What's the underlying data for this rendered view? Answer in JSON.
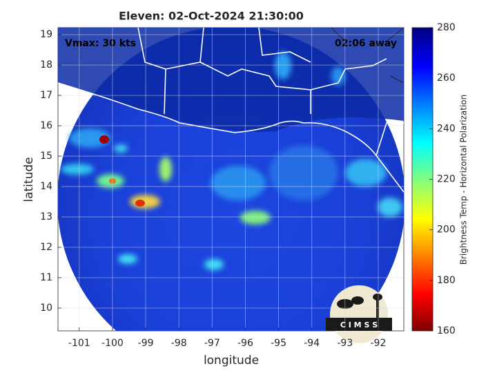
{
  "chart_data": {
    "type": "image",
    "title": "Eleven: 02-Oct-2024 21:30:00",
    "annotations": [
      "Vmax: 30 kts",
      "02:06 away"
    ],
    "xlabel": "longitude",
    "ylabel": "latitude",
    "xlim": [
      -101.64,
      -91.23
    ],
    "xticks": [
      -101,
      -100,
      -99,
      -98,
      -97,
      -96,
      -95,
      -94,
      -93,
      -92
    ],
    "ylim": [
      9.25,
      19.23
    ],
    "yticks": [
      10,
      11,
      12,
      13,
      14,
      15,
      16,
      17,
      18,
      19
    ],
    "grid": true,
    "colorbar": {
      "label": "Brightness Temp - Horizontal Polarization",
      "lim": [
        160,
        280
      ],
      "ticks": [
        160,
        180,
        200,
        220,
        240,
        260,
        280
      ]
    },
    "logo_text": "C I M S S"
  }
}
